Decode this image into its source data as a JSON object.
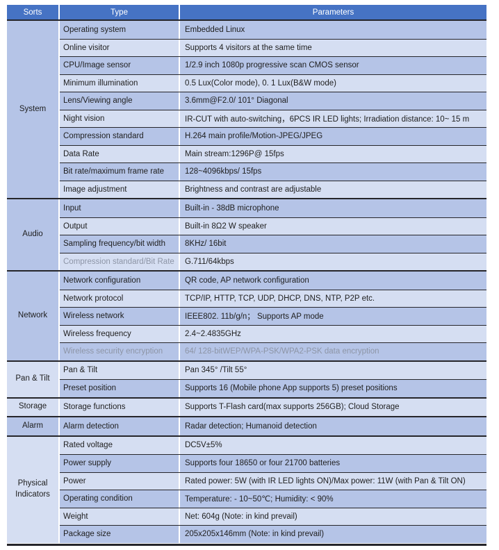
{
  "table": {
    "colors": {
      "header_bg": "#4673c4",
      "header_text": "#ffffff",
      "row_dark": "#b5c4e7",
      "row_light": "#d5def2",
      "border_dark": "#25252a",
      "text": "#1e1e1e",
      "muted_text": "#8d95a6"
    },
    "headers": {
      "sorts": "Sorts",
      "type": "Type",
      "parameters": "Parameters"
    },
    "sections": [
      {
        "label": "System",
        "rows": [
          {
            "type": "Operating system",
            "value": "Embedded Linux",
            "muted": "none"
          },
          {
            "type": "Online visitor",
            "value": "Supports 4 visitors at the same time",
            "muted": "none"
          },
          {
            "type": "CPU/Image sensor",
            "value": "1/2.9 inch 1080p progressive scan CMOS sensor",
            "muted": "none"
          },
          {
            "type": "Minimum illumination",
            "value": "0.5 Lux(Color mode), 0. 1 Lux(B&W mode)",
            "muted": "none"
          },
          {
            "type": "Lens/Viewing angle",
            "value": "3.6mm@F2.0/ 101° Diagonal",
            "muted": "none"
          },
          {
            "type": "Night vision",
            "value": "IR-CUT with auto-switching，6PCS IR LED lights; Irradiation distance: 10~ 15 m",
            "muted": "none"
          },
          {
            "type": "Compression standard",
            "value": "H.264 main profile/Motion-JPEG/JPEG",
            "muted": "none"
          },
          {
            "type": "Data Rate",
            "value": "Main stream:1296P@ 15fps",
            "muted": "none"
          },
          {
            "type": "Bit rate/maximum frame rate",
            "value": "128~4096kbps/ 15fps",
            "muted": "none"
          },
          {
            "type": "Image adjustment",
            "value": "Brightness and contrast are adjustable",
            "muted": "none"
          }
        ]
      },
      {
        "label": "Audio",
        "rows": [
          {
            "type": "Input",
            "value": "Built-in - 38dB microphone",
            "muted": "none"
          },
          {
            "type": "Output",
            "value": "Built-in 8Ω2 W speaker",
            "muted": "none"
          },
          {
            "type": "Sampling frequency/bit width",
            "value": "8KHz/ 16bit",
            "muted": "none"
          },
          {
            "type": "Compression standard/Bit Rate",
            "value": "G.711/64kbps",
            "muted": "type"
          }
        ]
      },
      {
        "label": "Network",
        "rows": [
          {
            "type": "Network configuration",
            "value": "QR code, AP network configuration",
            "muted": "none"
          },
          {
            "type": "Network protocol",
            "value": "TCP/IP, HTTP, TCP, UDP, DHCP, DNS, NTP, P2P etc.",
            "muted": "none"
          },
          {
            "type": "Wireless network",
            "value": "IEEE802. 11b/g/n；  Supports AP mode",
            "muted": "none"
          },
          {
            "type": "Wireless frequency",
            "value": "2.4~2.4835GHz",
            "muted": "none"
          },
          {
            "type": "Wireless security encryption",
            "value": "64/ 128-bitWEP/WPA-PSK/WPA2-PSK data encryption",
            "muted": "both"
          }
        ]
      },
      {
        "label": "Pan & Tilt",
        "rows": [
          {
            "type": "Pan & Tilt",
            "value": "Pan 345° /Tilt 55°",
            "muted": "none"
          },
          {
            "type": "Preset position",
            "value": "Supports 16 (Mobile phone App supports 5) preset positions",
            "muted": "none"
          }
        ]
      },
      {
        "label": "Storage",
        "rows": [
          {
            "type": "Storage functions",
            "value": "Supports T-Flash card(max supports 256GB); Cloud Storage",
            "muted": "none"
          }
        ]
      },
      {
        "label": "Alarm",
        "rows": [
          {
            "type": "Alarm detection",
            "value": "Radar detection; Humanoid detection",
            "muted": "none"
          }
        ]
      },
      {
        "label": "Physical Indicators",
        "rows": [
          {
            "type": "Rated voltage",
            "value": "DC5V±5%",
            "muted": "none"
          },
          {
            "type": "Power supply",
            "value": "Supports four 18650 or four 21700 batteries",
            "muted": "none"
          },
          {
            "type": "Power",
            "value": "Rated power: 5W (with IR LED lights ON)/Max power: 11W (with Pan & Tilt ON)",
            "muted": "none"
          },
          {
            "type": "Operating condition",
            "value": "Temperature: - 10~50℃; Humidity: < 90%",
            "muted": "none"
          },
          {
            "type": "Weight",
            "value": "Net: 604g (Note: in kind prevail)",
            "muted": "none"
          },
          {
            "type": "Package size",
            "value": "205x205x146mm (Note: in kind prevail)",
            "muted": "none"
          }
        ]
      }
    ]
  }
}
